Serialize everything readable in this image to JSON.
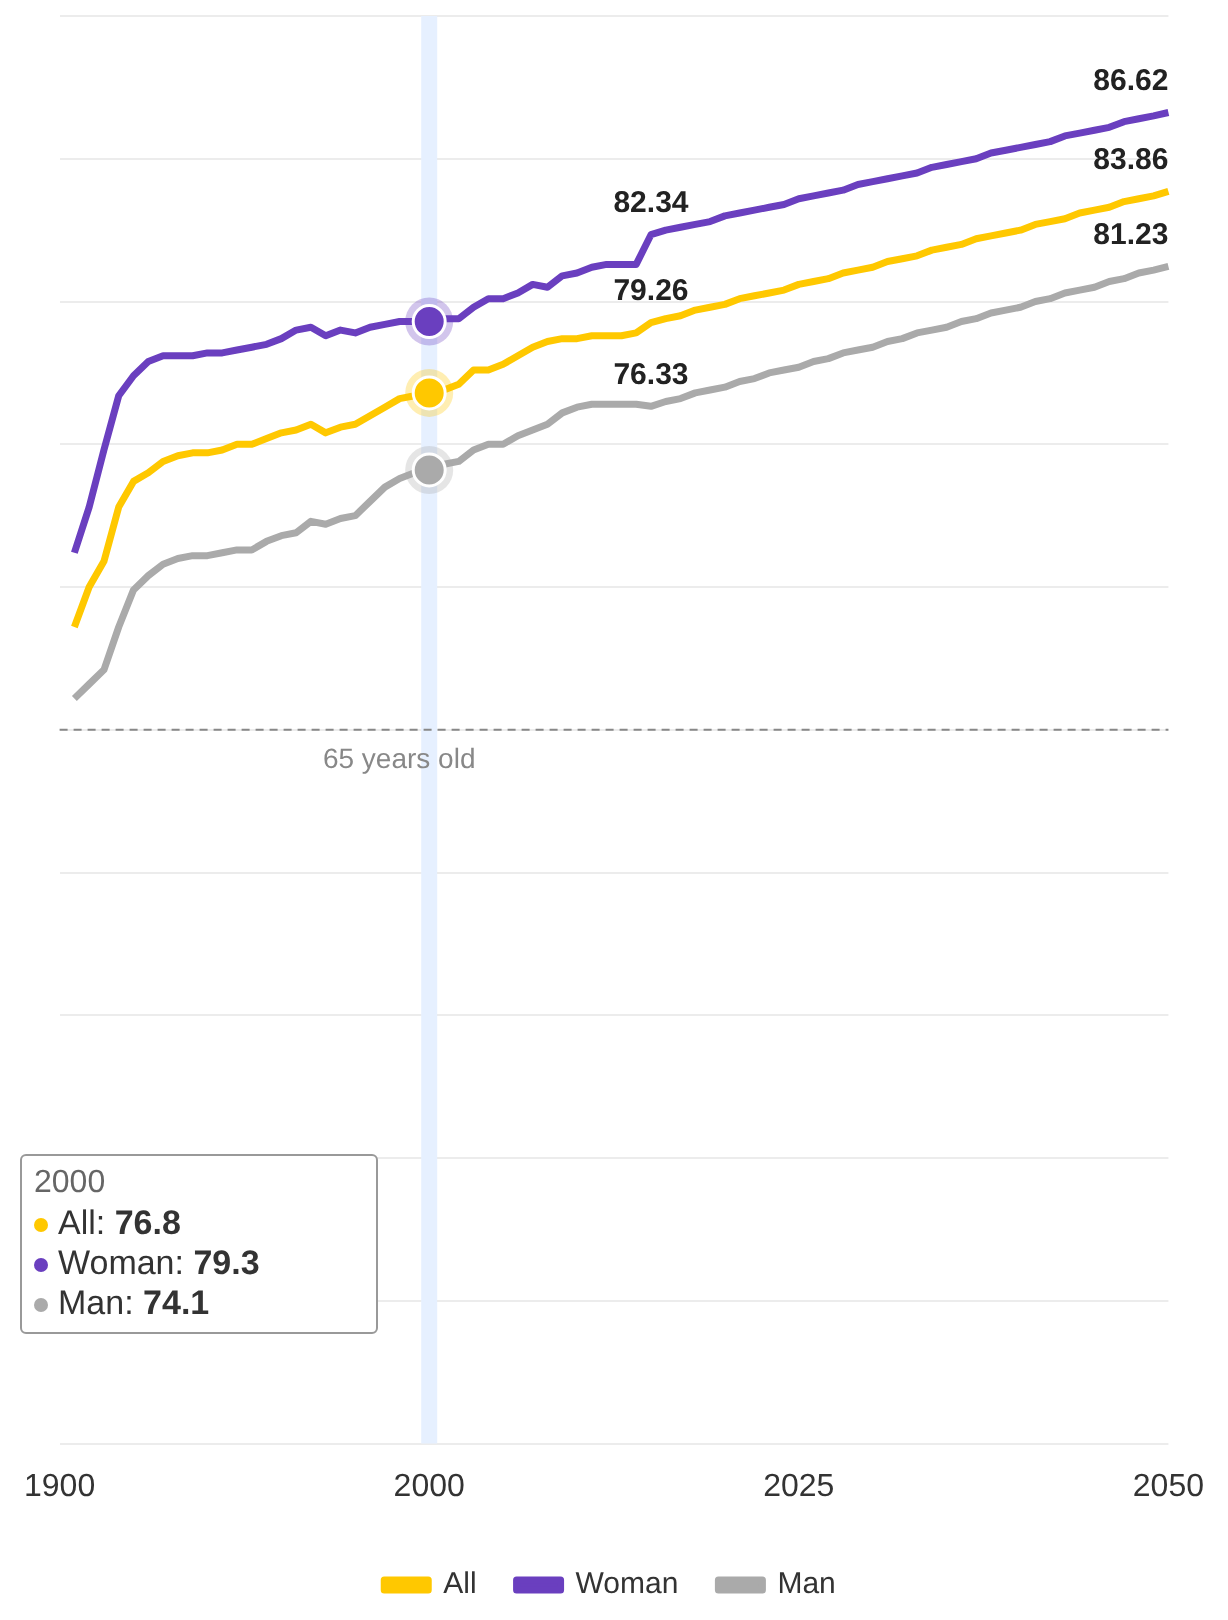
{
  "chart_data": {
    "type": "line",
    "categories": [
      "1900",
      null,
      null,
      null,
      null,
      null,
      null,
      null,
      null,
      null,
      null,
      null,
      null,
      null,
      null,
      null,
      null,
      null,
      null,
      null,
      null,
      null,
      null,
      null,
      null,
      "2000",
      null,
      null,
      null,
      null,
      null,
      null,
      null,
      null,
      null,
      null,
      null,
      null,
      null,
      null,
      null,
      null,
      null,
      null,
      null,
      null,
      null,
      null,
      null,
      null,
      "2025",
      null,
      null,
      null,
      null,
      null,
      null,
      null,
      null,
      null,
      null,
      null,
      null,
      null,
      null,
      null,
      null,
      null,
      null,
      null,
      null,
      null,
      null,
      null,
      null,
      "2050"
    ],
    "series": [
      {
        "name": "All",
        "color": "#ffc800",
        "values": [
          null,
          68.6,
          70.0,
          70.9,
          72.8,
          73.7,
          74.0,
          74.4,
          74.6,
          74.7,
          74.7,
          74.8,
          75.0,
          75.0,
          75.2,
          75.4,
          75.5,
          75.7,
          75.4,
          75.6,
          75.7,
          76.0,
          76.3,
          76.6,
          76.7,
          76.8,
          76.9,
          77.1,
          77.6,
          77.6,
          77.8,
          78.1,
          78.4,
          78.6,
          78.7,
          78.7,
          78.8,
          78.8,
          78.8,
          78.9,
          79.26,
          79.4,
          79.5,
          79.7,
          79.8,
          79.9,
          80.1,
          80.2,
          80.3,
          80.4,
          80.6,
          80.7,
          80.8,
          81.0,
          81.1,
          81.2,
          81.4,
          81.5,
          81.6,
          81.8,
          81.9,
          82.0,
          82.2,
          82.3,
          82.4,
          82.5,
          82.7,
          82.8,
          82.9,
          83.1,
          83.2,
          83.3,
          83.5,
          83.6,
          83.7,
          83.86
        ],
        "value_labels": [
          null,
          null,
          null,
          null,
          null,
          null,
          null,
          null,
          null,
          null,
          null,
          null,
          null,
          null,
          null,
          null,
          null,
          null,
          null,
          null,
          null,
          null,
          null,
          null,
          null,
          null,
          null,
          null,
          null,
          null,
          null,
          null,
          null,
          null,
          null,
          null,
          null,
          null,
          null,
          null,
          "79.26",
          null,
          null,
          null,
          null,
          null,
          null,
          null,
          null,
          null,
          null,
          null,
          null,
          null,
          null,
          null,
          null,
          null,
          null,
          null,
          null,
          null,
          null,
          null,
          null,
          null,
          null,
          null,
          null,
          null,
          null,
          null,
          null,
          null,
          null,
          "83.86"
        ]
      },
      {
        "name": "Woman",
        "color": "#6a3fbf",
        "values": [
          null,
          71.2,
          72.8,
          74.8,
          76.7,
          77.4,
          77.9,
          78.1,
          78.1,
          78.1,
          78.2,
          78.2,
          78.3,
          78.4,
          78.5,
          78.7,
          79.0,
          79.1,
          78.8,
          79.0,
          78.9,
          79.1,
          79.2,
          79.3,
          79.3,
          79.3,
          79.4,
          79.4,
          79.8,
          80.1,
          80.1,
          80.3,
          80.6,
          80.5,
          80.9,
          81.0,
          81.2,
          81.3,
          81.3,
          81.3,
          82.34,
          82.5,
          82.6,
          82.7,
          82.8,
          83.0,
          83.1,
          83.2,
          83.3,
          83.4,
          83.6,
          83.7,
          83.8,
          83.9,
          84.1,
          84.2,
          84.3,
          84.4,
          84.5,
          84.7,
          84.8,
          84.9,
          85.0,
          85.2,
          85.3,
          85.4,
          85.5,
          85.6,
          85.8,
          85.9,
          86.0,
          86.1,
          86.3,
          86.4,
          86.5,
          86.62
        ],
        "value_labels": [
          null,
          null,
          null,
          null,
          null,
          null,
          null,
          null,
          null,
          null,
          null,
          null,
          null,
          null,
          null,
          null,
          null,
          null,
          null,
          null,
          null,
          null,
          null,
          null,
          null,
          null,
          null,
          null,
          null,
          null,
          null,
          null,
          null,
          null,
          null,
          null,
          null,
          null,
          null,
          null,
          "82.34",
          null,
          null,
          null,
          null,
          null,
          null,
          null,
          null,
          null,
          null,
          null,
          null,
          null,
          null,
          null,
          null,
          null,
          null,
          null,
          null,
          null,
          null,
          null,
          null,
          null,
          null,
          null,
          null,
          null,
          null,
          null,
          null,
          null,
          null,
          "86.62"
        ]
      },
      {
        "name": "Man",
        "color": "#aaaaaa",
        "values": [
          null,
          66.1,
          66.6,
          67.1,
          68.6,
          69.9,
          70.4,
          70.8,
          71.0,
          71.1,
          71.1,
          71.2,
          71.3,
          71.3,
          71.6,
          71.8,
          71.9,
          72.3,
          72.2,
          72.4,
          72.5,
          73.0,
          73.5,
          73.8,
          74.0,
          74.1,
          74.3,
          74.4,
          74.8,
          75.0,
          75.0,
          75.3,
          75.5,
          75.7,
          76.1,
          76.3,
          76.4,
          76.4,
          76.4,
          76.4,
          76.33,
          76.5,
          76.6,
          76.8,
          76.9,
          77.0,
          77.2,
          77.3,
          77.5,
          77.6,
          77.7,
          77.9,
          78.0,
          78.2,
          78.3,
          78.4,
          78.6,
          78.7,
          78.9,
          79.0,
          79.1,
          79.3,
          79.4,
          79.6,
          79.7,
          79.8,
          80.0,
          80.1,
          80.3,
          80.4,
          80.5,
          80.7,
          80.8,
          81.0,
          81.1,
          81.23
        ],
        "value_labels": [
          null,
          null,
          null,
          null,
          null,
          null,
          null,
          null,
          null,
          null,
          null,
          null,
          null,
          null,
          null,
          null,
          null,
          null,
          null,
          null,
          null,
          null,
          null,
          null,
          null,
          null,
          null,
          null,
          null,
          null,
          null,
          null,
          null,
          null,
          null,
          null,
          null,
          null,
          null,
          null,
          "76.33",
          null,
          null,
          null,
          null,
          null,
          null,
          null,
          null,
          null,
          null,
          null,
          null,
          null,
          null,
          null,
          null,
          null,
          null,
          null,
          null,
          null,
          null,
          null,
          null,
          null,
          null,
          null,
          null,
          null,
          null,
          null,
          null,
          null,
          null,
          "81.23"
        ]
      }
    ],
    "ylim": [
      40,
      90
    ],
    "yticks": [
      {
        "value": 40,
        "label": null
      },
      {
        "value": 45,
        "label": null
      },
      {
        "value": 50,
        "label": null
      },
      {
        "value": 55,
        "label": null
      },
      {
        "value": 60,
        "label": null
      },
      {
        "value": 65,
        "label": null
      },
      {
        "value": 70,
        "label": null
      },
      {
        "value": 75,
        "label": null
      },
      {
        "value": 80,
        "label": null
      },
      {
        "value": 85,
        "label": null
      },
      {
        "value": 90,
        "label": null
      }
    ],
    "tick_labels": "x",
    "grid": "y",
    "legend": "bottom",
    "ref_lines": [
      {
        "axis": "y",
        "value": 65,
        "label": "65 years old",
        "color": "#888888",
        "line_style": "dashed"
      }
    ],
    "bands": [
      {
        "axis": "x",
        "from": "2000",
        "to": "2000",
        "color": "#e6f0ff"
      }
    ],
    "annotations": [
      "2000",
      "All: 76.8",
      "Woman: 79.3",
      "Man: 74.1"
    ]
  }
}
